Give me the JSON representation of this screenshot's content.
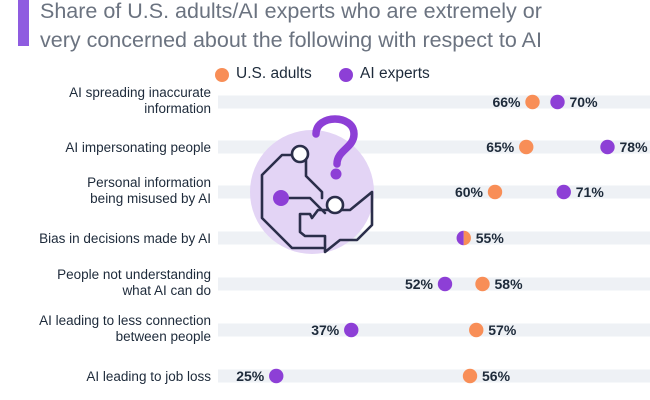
{
  "header": {
    "title_line1": "Share of U.S. adults/AI experts who are extremely or",
    "title_line2": "very concerned about the following with respect to AI",
    "accent_color": "#8f5ce0"
  },
  "colors": {
    "us_adults": "#f88e57",
    "ai_experts": "#8d3fd6",
    "row_band": "#eef1f5",
    "text": "#1d2a3a",
    "illustration_circle": "#e3d4f5"
  },
  "illustration": {
    "icon": "ai-circuit-question-mark-icon"
  },
  "chart_data": {
    "type": "scatter",
    "title": "Share of U.S. adults/AI experts who are extremely or very concerned about the following with respect to AI",
    "unit": "%",
    "legend_position": "top",
    "categories": [
      [
        "AI spreading inaccurate",
        "information"
      ],
      [
        "AI impersonating people"
      ],
      [
        "Personal information",
        "being misused by AI"
      ],
      [
        "Bias in decisions made by AI"
      ],
      [
        "People not understanding",
        "what AI can do"
      ],
      [
        "AI leading to less connection",
        "between people"
      ],
      [
        "AI leading to job loss"
      ]
    ],
    "series": [
      {
        "name": "U.S. adults",
        "color": "#f88e57",
        "values": [
          66,
          65,
          60,
          55,
          58,
          57,
          56
        ]
      },
      {
        "name": "AI experts",
        "color": "#8d3fd6",
        "values": [
          70,
          78,
          71,
          55,
          52,
          37,
          25
        ]
      }
    ],
    "xlim": [
      0,
      100
    ],
    "value_suffix": "%"
  }
}
